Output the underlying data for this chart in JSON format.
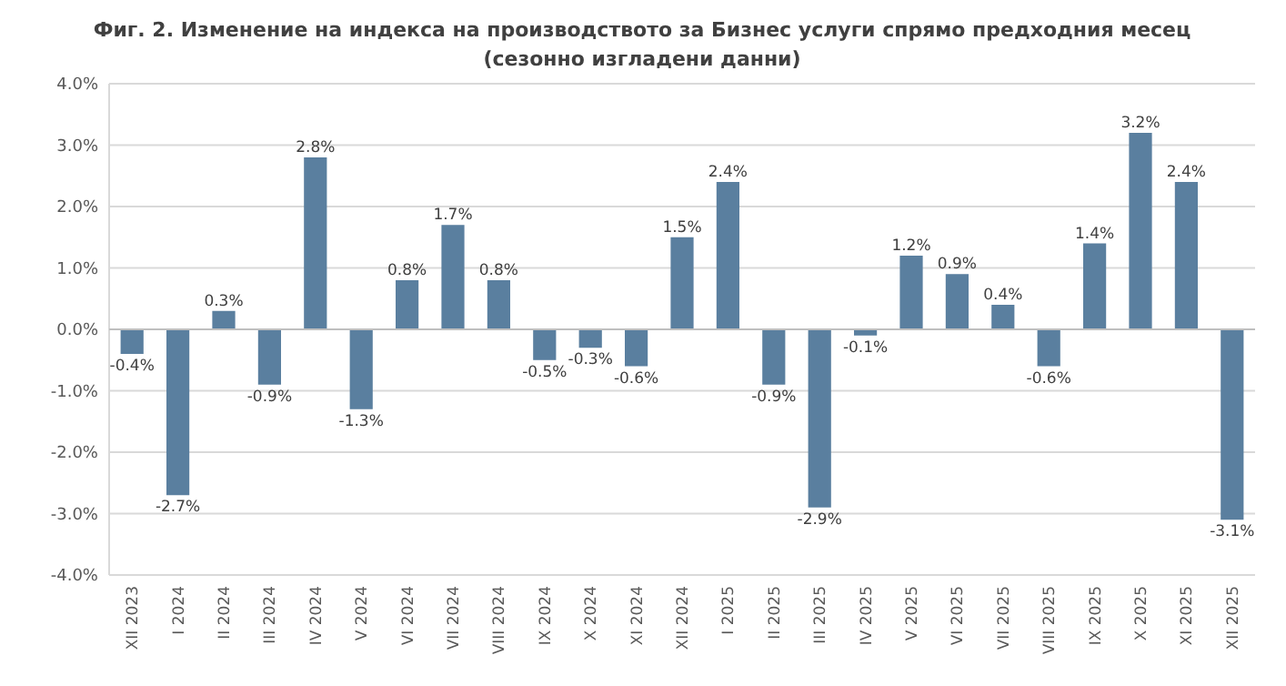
{
  "chart_data": {
    "type": "bar",
    "title": "Фиг. 2. Изменение на индекса на производството за Бизнес услуги спрямо предходния месец",
    "subtitle": "(сезонно изгладени данни)",
    "categories": [
      "XII 2023",
      "I 2024",
      "II 2024",
      "III 2024",
      "IV 2024",
      "V 2024",
      "VI 2024",
      "VII 2024",
      "VIII 2024",
      "IX 2024",
      "X 2024",
      "XI 2024",
      "XII 2024",
      "I 2025",
      "II 2025",
      "III 2025",
      "IV 2025",
      "V 2025",
      "VI 2025",
      "VII 2025",
      "VIII 2025",
      "IX 2025",
      "X 2025",
      "XI 2025",
      "XII 2025"
    ],
    "values": [
      -0.4,
      -2.7,
      0.3,
      -0.9,
      2.8,
      -1.3,
      0.8,
      1.7,
      0.8,
      -0.5,
      -0.3,
      -0.6,
      1.5,
      2.4,
      -0.9,
      -2.9,
      -0.1,
      1.2,
      0.9,
      0.4,
      -0.6,
      1.4,
      3.2,
      2.4,
      -3.1
    ],
    "value_labels": [
      "-0.4%",
      "-2.7%",
      "0.3%",
      "-0.9%",
      "2.8%",
      "-1.3%",
      "0.8%",
      "1.7%",
      "0.8%",
      "-0.5%",
      "-0.3%",
      "-0.6%",
      "1.5%",
      "2.4%",
      "-0.9%",
      "-2.9%",
      "-0.1%",
      "1.2%",
      "0.9%",
      "0.4%",
      "-0.6%",
      "1.4%",
      "3.2%",
      "2.4%",
      "-3.1%"
    ],
    "color": "#5a7f9f",
    "ylim": [
      -4,
      4
    ],
    "yticks": [
      {
        "value": -4,
        "label": "-4.0%"
      },
      {
        "value": -3,
        "label": "-3.0%"
      },
      {
        "value": -2,
        "label": "-2.0%"
      },
      {
        "value": -1,
        "label": "-1.0%"
      },
      {
        "value": 0,
        "label": "0.0%"
      },
      {
        "value": 1,
        "label": "1.0%"
      },
      {
        "value": 2,
        "label": "2.0%"
      },
      {
        "value": 3,
        "label": "3.0%"
      },
      {
        "value": 4,
        "label": "4.0%"
      }
    ],
    "grid": "y"
  }
}
